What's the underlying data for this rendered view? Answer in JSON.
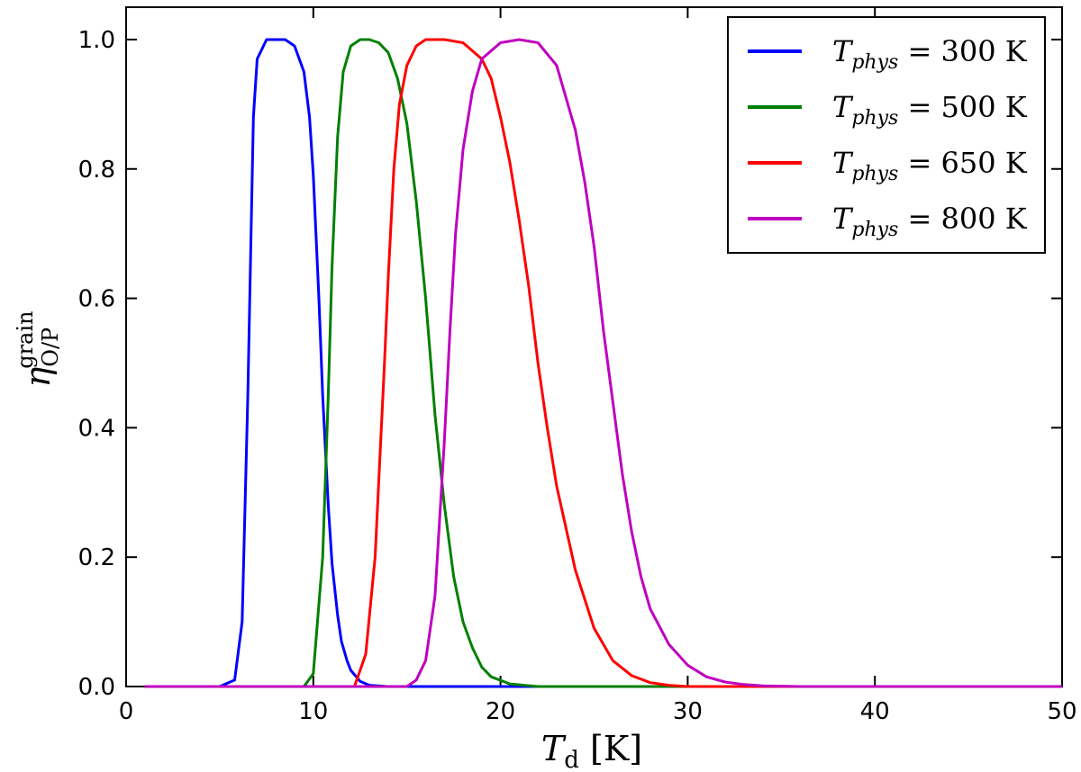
{
  "chart_data": {
    "type": "line",
    "xlabel": "T_d [K]",
    "ylabel": "η_O/P^grain",
    "xlim": [
      0,
      50
    ],
    "ylim": [
      0,
      1.05
    ],
    "x_ticks": [
      "0",
      "10",
      "20",
      "30",
      "40",
      "50"
    ],
    "y_ticks": [
      "0.0",
      "0.2",
      "0.4",
      "0.6",
      "0.8",
      "1.0"
    ],
    "grid": false,
    "legend_position": "top-right",
    "series": [
      {
        "name": "T_phys = 300 K",
        "color": "#0000ff",
        "x": [
          1,
          5,
          5.8,
          6.2,
          6.5,
          6.8,
          7.0,
          7.5,
          8.0,
          8.5,
          9.0,
          9.5,
          9.8,
          10.0,
          10.3,
          10.5,
          10.8,
          11.0,
          11.3,
          11.5,
          11.8,
          12.0,
          12.5,
          13.0,
          14.0,
          50
        ],
        "values": [
          0,
          0,
          0.01,
          0.1,
          0.45,
          0.88,
          0.97,
          1.0,
          1.0,
          1.0,
          0.99,
          0.95,
          0.88,
          0.79,
          0.6,
          0.45,
          0.28,
          0.19,
          0.11,
          0.07,
          0.04,
          0.025,
          0.008,
          0.002,
          0,
          0
        ]
      },
      {
        "name": "T_phys = 500 K",
        "color": "#008000",
        "x": [
          1,
          9.5,
          10.0,
          10.5,
          10.8,
          11.0,
          11.3,
          11.6,
          12.0,
          12.5,
          13.0,
          13.5,
          14.0,
          14.5,
          15.0,
          15.5,
          16.0,
          16.5,
          17.0,
          17.5,
          18.0,
          18.5,
          19.0,
          19.5,
          20.5,
          22.0,
          50
        ],
        "values": [
          0,
          0,
          0.02,
          0.2,
          0.45,
          0.65,
          0.85,
          0.95,
          0.99,
          1.0,
          1.0,
          0.995,
          0.98,
          0.94,
          0.87,
          0.75,
          0.6,
          0.42,
          0.28,
          0.17,
          0.1,
          0.06,
          0.03,
          0.015,
          0.004,
          0,
          0
        ]
      },
      {
        "name": "T_phys = 650 K",
        "color": "#ff0000",
        "x": [
          1,
          12.2,
          12.8,
          13.3,
          13.8,
          14.0,
          14.3,
          14.6,
          15.0,
          15.5,
          16.0,
          17.0,
          18.0,
          19.0,
          19.5,
          20.0,
          20.5,
          21.0,
          21.5,
          22.0,
          22.5,
          23.0,
          24.0,
          25.0,
          26.0,
          27.0,
          28.0,
          29.0,
          30.0,
          50
        ],
        "values": [
          0,
          0,
          0.05,
          0.2,
          0.5,
          0.63,
          0.8,
          0.9,
          0.96,
          0.99,
          1.0,
          1.0,
          0.995,
          0.97,
          0.94,
          0.88,
          0.81,
          0.72,
          0.62,
          0.5,
          0.4,
          0.31,
          0.18,
          0.09,
          0.04,
          0.017,
          0.006,
          0.002,
          0,
          0
        ]
      },
      {
        "name": "T_phys = 800 K",
        "color": "#bf00bf",
        "x": [
          1,
          15.0,
          15.5,
          16.0,
          16.5,
          17.0,
          17.3,
          17.6,
          18.0,
          18.5,
          19.0,
          20.0,
          21.0,
          22.0,
          23.0,
          24.0,
          24.5,
          25.0,
          25.5,
          26.0,
          26.5,
          27.0,
          27.5,
          28.0,
          29.0,
          30.0,
          31.0,
          32.0,
          33.0,
          34.0,
          36.0,
          50
        ],
        "values": [
          0,
          0,
          0.01,
          0.04,
          0.14,
          0.38,
          0.55,
          0.7,
          0.83,
          0.92,
          0.97,
          0.995,
          1.0,
          0.995,
          0.96,
          0.86,
          0.78,
          0.68,
          0.55,
          0.44,
          0.33,
          0.24,
          0.17,
          0.12,
          0.065,
          0.033,
          0.015,
          0.007,
          0.003,
          0.001,
          0,
          0
        ]
      }
    ]
  }
}
